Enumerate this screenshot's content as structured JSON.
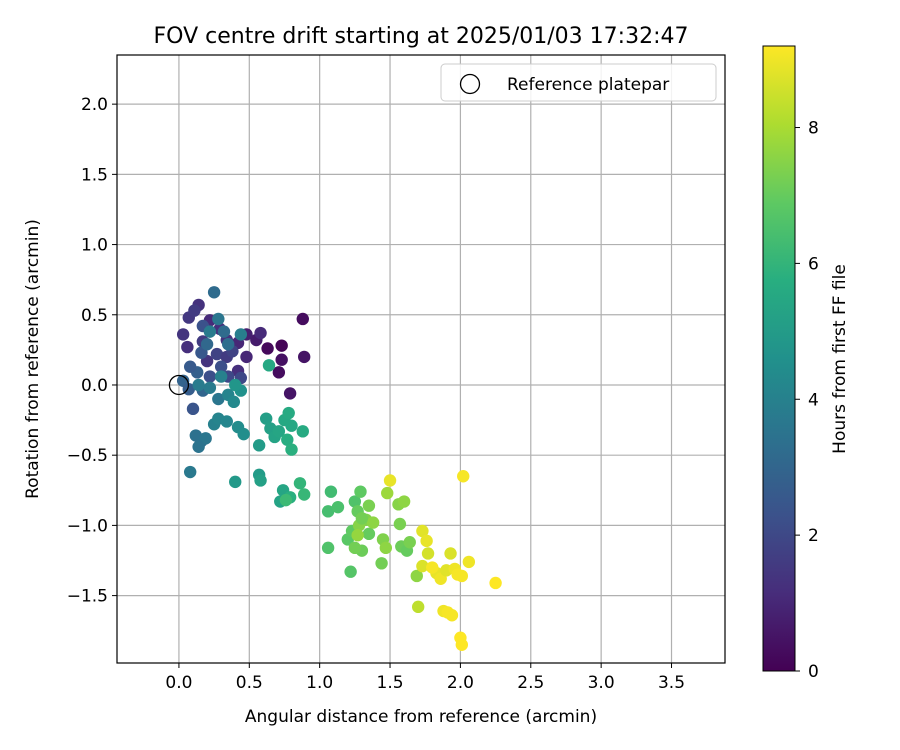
{
  "chart_data": {
    "type": "scatter",
    "title": "FOV centre drift starting at 2025/01/03 17:32:47",
    "xlabel": "Angular distance from reference (arcmin)",
    "ylabel": "Rotation from reference (arcmin)",
    "xlim": [
      -0.44,
      3.88
    ],
    "ylim": [
      -1.98,
      2.35
    ],
    "xticks": [
      0.0,
      0.5,
      1.0,
      1.5,
      2.0,
      2.5,
      3.0,
      3.5
    ],
    "xtick_labels": [
      "0.0",
      "0.5",
      "1.0",
      "1.5",
      "2.0",
      "2.5",
      "3.0",
      "3.5"
    ],
    "yticks": [
      -1.5,
      -1.0,
      -0.5,
      0.0,
      0.5,
      1.0,
      1.5,
      2.0
    ],
    "ytick_labels": [
      "−1.5",
      "−1.0",
      "−0.5",
      "0.0",
      "0.5",
      "1.0",
      "1.5",
      "2.0"
    ],
    "grid": true,
    "colormap": "viridis",
    "colorbar": {
      "label": "Hours from first FF file",
      "range": [
        0,
        9.2
      ],
      "ticks": [
        0,
        2,
        4,
        6,
        8
      ],
      "tick_labels": [
        "0",
        "2",
        "4",
        "6",
        "8"
      ]
    },
    "legend": {
      "position": "top-right",
      "entries": [
        {
          "label": "Reference platepar",
          "marker": "open-circle"
        }
      ]
    },
    "reference": {
      "x": 0.0,
      "y": 0.0
    },
    "points": [
      {
        "x": 0.73,
        "y": 0.28,
        "c": 0.05
      },
      {
        "x": 0.63,
        "y": 0.26,
        "c": 0.2
      },
      {
        "x": 0.88,
        "y": 0.47,
        "c": 0.3
      },
      {
        "x": 0.89,
        "y": 0.2,
        "c": 0.5
      },
      {
        "x": 0.73,
        "y": 0.18,
        "c": 0.4
      },
      {
        "x": 0.71,
        "y": 0.09,
        "c": 0.3
      },
      {
        "x": 0.79,
        "y": -0.06,
        "c": 0.5
      },
      {
        "x": 0.55,
        "y": 0.32,
        "c": 0.7
      },
      {
        "x": 0.48,
        "y": 0.36,
        "c": 0.8
      },
      {
        "x": 0.42,
        "y": 0.3,
        "c": 1.0
      },
      {
        "x": 0.58,
        "y": 0.37,
        "c": 1.1
      },
      {
        "x": 0.48,
        "y": 0.2,
        "c": 1.0
      },
      {
        "x": 0.42,
        "y": 0.1,
        "c": 1.2
      },
      {
        "x": 0.34,
        "y": 0.32,
        "c": 1.3
      },
      {
        "x": 0.29,
        "y": 0.4,
        "c": 1.2
      },
      {
        "x": 0.22,
        "y": 0.46,
        "c": 1.1
      },
      {
        "x": 0.14,
        "y": 0.57,
        "c": 1.3
      },
      {
        "x": 0.07,
        "y": 0.48,
        "c": 1.5
      },
      {
        "x": 0.11,
        "y": 0.53,
        "c": 1.6
      },
      {
        "x": 0.03,
        "y": 0.36,
        "c": 1.4
      },
      {
        "x": 0.06,
        "y": 0.27,
        "c": 1.2
      },
      {
        "x": 0.17,
        "y": 0.31,
        "c": 1.6
      },
      {
        "x": 0.2,
        "y": 0.17,
        "c": 1.4
      },
      {
        "x": 0.27,
        "y": 0.22,
        "c": 1.8
      },
      {
        "x": 0.34,
        "y": 0.2,
        "c": 1.6
      },
      {
        "x": 0.38,
        "y": 0.24,
        "c": 1.8
      },
      {
        "x": 0.44,
        "y": 0.05,
        "c": 2.0
      },
      {
        "x": 0.35,
        "y": 0.06,
        "c": 2.0
      },
      {
        "x": 0.3,
        "y": 0.13,
        "c": 2.2
      },
      {
        "x": 0.22,
        "y": 0.06,
        "c": 2.2
      },
      {
        "x": 0.17,
        "y": 0.42,
        "c": 2.3
      },
      {
        "x": 0.16,
        "y": 0.23,
        "c": 2.5
      },
      {
        "x": 0.13,
        "y": 0.09,
        "c": 2.8
      },
      {
        "x": 0.08,
        "y": 0.13,
        "c": 2.6
      },
      {
        "x": 0.03,
        "y": 0.03,
        "c": 2.9
      },
      {
        "x": 0.1,
        "y": -0.17,
        "c": 2.4
      },
      {
        "x": 0.07,
        "y": -0.03,
        "c": 2.7
      },
      {
        "x": 0.17,
        "y": -0.04,
        "c": 3.0
      },
      {
        "x": 0.2,
        "y": 0.29,
        "c": 3.1
      },
      {
        "x": 0.25,
        "y": 0.66,
        "c": 3.2
      },
      {
        "x": 0.32,
        "y": 0.38,
        "c": 3.2
      },
      {
        "x": 0.35,
        "y": 0.29,
        "c": 3.3
      },
      {
        "x": 0.28,
        "y": 0.47,
        "c": 3.6
      },
      {
        "x": 0.22,
        "y": 0.38,
        "c": 3.8
      },
      {
        "x": 0.44,
        "y": 0.36,
        "c": 3.9
      },
      {
        "x": 0.16,
        "y": -0.4,
        "c": 3.2
      },
      {
        "x": 0.12,
        "y": -0.36,
        "c": 3.4
      },
      {
        "x": 0.19,
        "y": -0.38,
        "c": 3.6
      },
      {
        "x": 0.14,
        "y": -0.44,
        "c": 3.5
      },
      {
        "x": 0.08,
        "y": -0.62,
        "c": 3.7
      },
      {
        "x": 0.25,
        "y": -0.28,
        "c": 4.0
      },
      {
        "x": 0.28,
        "y": -0.24,
        "c": 4.1
      },
      {
        "x": 0.34,
        "y": -0.26,
        "c": 4.2
      },
      {
        "x": 0.28,
        "y": -0.1,
        "c": 3.6
      },
      {
        "x": 0.22,
        "y": -0.02,
        "c": 3.8
      },
      {
        "x": 0.14,
        "y": 0.0,
        "c": 3.8
      },
      {
        "x": 0.3,
        "y": 0.06,
        "c": 4.0
      },
      {
        "x": 0.35,
        "y": -0.07,
        "c": 4.1
      },
      {
        "x": 0.39,
        "y": -0.12,
        "c": 4.3
      },
      {
        "x": 0.44,
        "y": -0.04,
        "c": 4.6
      },
      {
        "x": 0.4,
        "y": 0.0,
        "c": 4.8
      },
      {
        "x": 0.42,
        "y": -0.3,
        "c": 4.4
      },
      {
        "x": 0.46,
        "y": -0.35,
        "c": 4.5
      },
      {
        "x": 0.4,
        "y": -0.69,
        "c": 4.9
      },
      {
        "x": 0.57,
        "y": -0.43,
        "c": 5.0
      },
      {
        "x": 0.62,
        "y": -0.24,
        "c": 5.1
      },
      {
        "x": 0.65,
        "y": -0.31,
        "c": 5.2
      },
      {
        "x": 0.68,
        "y": -0.37,
        "c": 5.3
      },
      {
        "x": 0.71,
        "y": -0.33,
        "c": 5.4
      },
      {
        "x": 0.75,
        "y": -0.25,
        "c": 5.5
      },
      {
        "x": 0.78,
        "y": -0.2,
        "c": 5.6
      },
      {
        "x": 0.8,
        "y": -0.29,
        "c": 5.5
      },
      {
        "x": 0.77,
        "y": -0.39,
        "c": 5.7
      },
      {
        "x": 0.8,
        "y": -0.46,
        "c": 5.8
      },
      {
        "x": 0.88,
        "y": -0.33,
        "c": 5.6
      },
      {
        "x": 0.57,
        "y": -0.64,
        "c": 5.0
      },
      {
        "x": 0.58,
        "y": -0.68,
        "c": 5.2
      },
      {
        "x": 0.72,
        "y": -0.83,
        "c": 5.3
      },
      {
        "x": 0.74,
        "y": -0.75,
        "c": 5.4
      },
      {
        "x": 0.79,
        "y": -0.8,
        "c": 5.8
      },
      {
        "x": 0.76,
        "y": -0.82,
        "c": 6.2
      },
      {
        "x": 0.86,
        "y": -0.7,
        "c": 6.0
      },
      {
        "x": 0.89,
        "y": -0.78,
        "c": 6.1
      },
      {
        "x": 0.64,
        "y": 0.14,
        "c": 5.5
      },
      {
        "x": 1.08,
        "y": -0.76,
        "c": 6.3
      },
      {
        "x": 1.06,
        "y": -0.9,
        "c": 6.4
      },
      {
        "x": 1.13,
        "y": -0.87,
        "c": 6.5
      },
      {
        "x": 1.06,
        "y": -1.16,
        "c": 6.6
      },
      {
        "x": 1.2,
        "y": -1.1,
        "c": 6.8
      },
      {
        "x": 1.22,
        "y": -1.33,
        "c": 6.7
      },
      {
        "x": 1.25,
        "y": -0.83,
        "c": 6.6
      },
      {
        "x": 1.29,
        "y": -0.76,
        "c": 6.9
      },
      {
        "x": 1.27,
        "y": -0.9,
        "c": 7.0
      },
      {
        "x": 1.23,
        "y": -1.04,
        "c": 6.9
      },
      {
        "x": 1.3,
        "y": -1.18,
        "c": 7.1
      },
      {
        "x": 1.25,
        "y": -1.16,
        "c": 7.2
      },
      {
        "x": 1.35,
        "y": -1.06,
        "c": 7.0
      },
      {
        "x": 1.35,
        "y": -0.86,
        "c": 7.3
      },
      {
        "x": 1.33,
        "y": -0.96,
        "c": 7.4
      },
      {
        "x": 1.28,
        "y": -1.0,
        "c": 7.5
      },
      {
        "x": 1.38,
        "y": -0.98,
        "c": 7.6
      },
      {
        "x": 1.3,
        "y": -0.95,
        "c": 7.2
      },
      {
        "x": 1.27,
        "y": -1.07,
        "c": 7.7
      },
      {
        "x": 1.45,
        "y": -1.1,
        "c": 7.4
      },
      {
        "x": 1.47,
        "y": -1.16,
        "c": 7.6
      },
      {
        "x": 1.44,
        "y": -1.27,
        "c": 7.2
      },
      {
        "x": 1.48,
        "y": -0.77,
        "c": 7.8
      },
      {
        "x": 1.56,
        "y": -0.85,
        "c": 7.5
      },
      {
        "x": 1.57,
        "y": -0.99,
        "c": 7.3
      },
      {
        "x": 1.6,
        "y": -0.83,
        "c": 7.6
      },
      {
        "x": 1.58,
        "y": -1.15,
        "c": 7.1
      },
      {
        "x": 1.62,
        "y": -1.18,
        "c": 7.0
      },
      {
        "x": 1.64,
        "y": -1.12,
        "c": 7.3
      },
      {
        "x": 1.69,
        "y": -1.36,
        "c": 7.6
      },
      {
        "x": 1.7,
        "y": -1.58,
        "c": 8.3
      },
      {
        "x": 1.5,
        "y": -0.68,
        "c": 8.9
      },
      {
        "x": 1.73,
        "y": -1.04,
        "c": 8.8
      },
      {
        "x": 1.76,
        "y": -1.11,
        "c": 8.9
      },
      {
        "x": 1.77,
        "y": -1.2,
        "c": 8.6
      },
      {
        "x": 1.73,
        "y": -1.29,
        "c": 8.7
      },
      {
        "x": 1.83,
        "y": -1.34,
        "c": 8.9
      },
      {
        "x": 1.86,
        "y": -1.38,
        "c": 9.0
      },
      {
        "x": 1.9,
        "y": -1.32,
        "c": 8.8
      },
      {
        "x": 1.93,
        "y": -1.2,
        "c": 8.7
      },
      {
        "x": 1.96,
        "y": -1.31,
        "c": 9.0
      },
      {
        "x": 1.98,
        "y": -1.35,
        "c": 9.1
      },
      {
        "x": 2.01,
        "y": -1.36,
        "c": 9.1
      },
      {
        "x": 2.06,
        "y": -1.26,
        "c": 9.0
      },
      {
        "x": 2.02,
        "y": -0.65,
        "c": 9.1
      },
      {
        "x": 2.25,
        "y": -1.41,
        "c": 9.2
      },
      {
        "x": 1.88,
        "y": -1.61,
        "c": 9.0
      },
      {
        "x": 1.91,
        "y": -1.62,
        "c": 9.1
      },
      {
        "x": 1.94,
        "y": -1.64,
        "c": 9.1
      },
      {
        "x": 2.0,
        "y": -1.8,
        "c": 9.2
      },
      {
        "x": 2.01,
        "y": -1.85,
        "c": 9.2
      },
      {
        "x": 1.8,
        "y": -1.3,
        "c": 9.1
      }
    ]
  }
}
